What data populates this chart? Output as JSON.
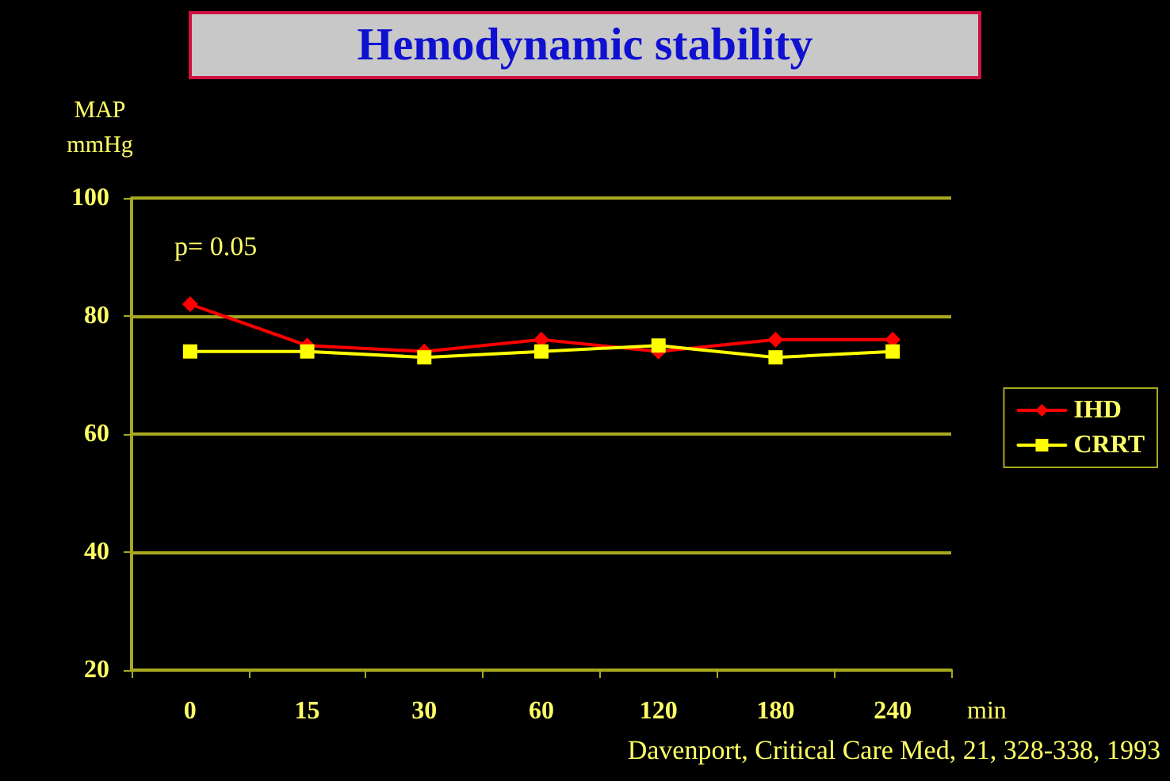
{
  "chart_data": {
    "type": "line",
    "title": "Hemodynamic stability",
    "xlabel": "min",
    "ylabel": "MAP\nmmHg",
    "categories": [
      "0",
      "15",
      "30",
      "60",
      "120",
      "180",
      "240"
    ],
    "series": [
      {
        "name": "IHD",
        "color": "#ff0000",
        "marker": "diamond",
        "values": [
          82,
          75,
          74,
          76,
          74,
          76,
          76
        ]
      },
      {
        "name": "CRRT",
        "color": "#ffff00",
        "marker": "square",
        "values": [
          74,
          74,
          73,
          74,
          75,
          73,
          74
        ]
      }
    ],
    "ylim": [
      20,
      100
    ],
    "yticks": [
      20,
      40,
      60,
      80,
      100
    ],
    "grid": "y",
    "legend": "right",
    "annotations": [
      "p= 0.05",
      "Davenport, Critical Care Med, 21, 328-338, 1993"
    ]
  }
}
